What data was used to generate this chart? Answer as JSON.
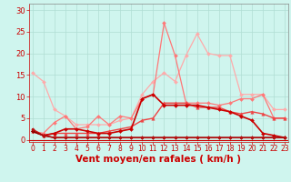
{
  "background_color": "#cff5ee",
  "grid_color": "#b0ddd4",
  "xlabel": "Vent moyen/en rafales ( km/h )",
  "xlabel_color": "#cc0000",
  "xlabel_fontsize": 7.5,
  "tick_color": "#cc0000",
  "yticks": [
    0,
    5,
    10,
    15,
    20,
    25,
    30
  ],
  "xticks": [
    0,
    1,
    2,
    3,
    4,
    5,
    6,
    7,
    8,
    9,
    10,
    11,
    12,
    13,
    14,
    15,
    16,
    17,
    18,
    19,
    20,
    21,
    22,
    23
  ],
  "xlim": [
    -0.3,
    23.3
  ],
  "ylim": [
    -0.5,
    31.5
  ],
  "lines": [
    {
      "color": "#ffaaaa",
      "linewidth": 0.9,
      "marker": "D",
      "markersize": 2.0,
      "y": [
        15.5,
        13.5,
        7.0,
        5.5,
        3.5,
        3.5,
        3.5,
        3.5,
        4.5,
        5.0,
        10.5,
        13.5,
        15.5,
        13.5,
        19.5,
        24.5,
        20.0,
        19.5,
        19.5,
        10.5,
        10.5,
        10.5,
        7.0,
        7.0
      ]
    },
    {
      "color": "#ff7777",
      "linewidth": 0.9,
      "marker": "D",
      "markersize": 2.0,
      "y": [
        2.0,
        1.5,
        4.0,
        5.5,
        2.5,
        3.0,
        5.5,
        3.5,
        5.5,
        5.0,
        9.5,
        10.5,
        27.0,
        19.5,
        8.5,
        8.5,
        8.5,
        8.0,
        8.5,
        9.5,
        9.5,
        10.5,
        5.0,
        5.0
      ]
    },
    {
      "color": "#ee4444",
      "linewidth": 1.0,
      "marker": "^",
      "markersize": 2.5,
      "y": [
        2.0,
        1.0,
        1.5,
        1.5,
        1.5,
        1.5,
        1.5,
        2.0,
        2.5,
        3.0,
        4.5,
        5.0,
        8.5,
        8.5,
        8.5,
        7.5,
        7.5,
        7.5,
        6.5,
        6.0,
        6.5,
        6.0,
        5.0,
        5.0
      ]
    },
    {
      "color": "#cc0000",
      "linewidth": 1.2,
      "marker": "D",
      "markersize": 2.0,
      "y": [
        2.0,
        1.0,
        1.5,
        2.5,
        2.5,
        2.0,
        1.5,
        1.5,
        2.0,
        2.5,
        9.5,
        10.5,
        8.0,
        8.0,
        8.0,
        8.0,
        7.5,
        7.0,
        6.5,
        5.5,
        4.5,
        1.5,
        1.0,
        0.5
      ]
    },
    {
      "color": "#880000",
      "linewidth": 1.2,
      "marker": "D",
      "markersize": 1.8,
      "y": [
        2.0,
        1.0,
        0.5,
        0.5,
        0.5,
        0.5,
        0.5,
        0.5,
        0.5,
        0.5,
        0.5,
        0.5,
        0.5,
        0.5,
        0.5,
        0.5,
        0.5,
        0.5,
        0.5,
        0.5,
        0.5,
        0.5,
        0.5,
        0.5
      ]
    },
    {
      "color": "#bb1111",
      "linewidth": 0.9,
      "marker": "D",
      "markersize": 1.8,
      "y": [
        2.5,
        1.0,
        0.5,
        0.5,
        0.5,
        0.5,
        0.5,
        0.5,
        0.5,
        0.5,
        0.5,
        0.5,
        0.5,
        0.5,
        0.5,
        0.5,
        0.5,
        0.5,
        0.5,
        0.5,
        0.5,
        0.5,
        0.5,
        0.5
      ]
    }
  ]
}
